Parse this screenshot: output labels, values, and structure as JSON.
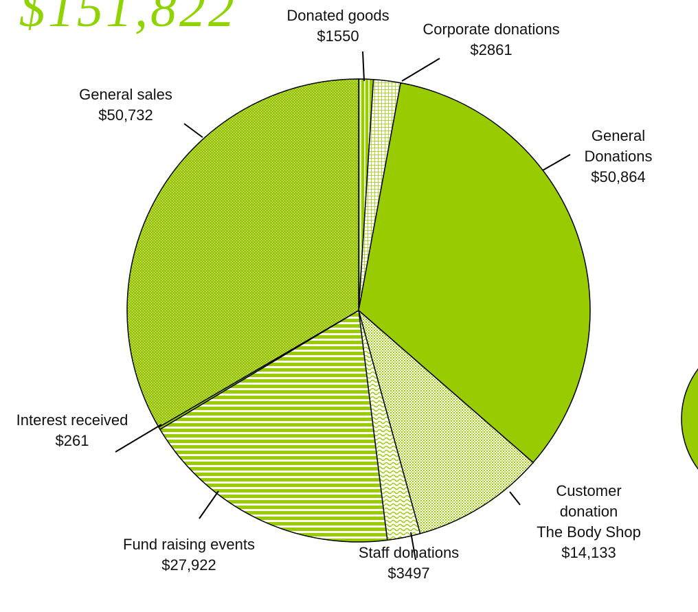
{
  "chart_data": {
    "type": "pie",
    "title": "$151,822",
    "color": "#99cc00",
    "categories": [
      "Donated goods",
      "Corporate donations",
      "General Donations",
      "Customer donation\nThe Body Shop",
      "Staff donations",
      "Fund raising events",
      "Interest received",
      "General sales"
    ],
    "values": [
      1550,
      2861,
      50864,
      14133,
      3497,
      27922,
      261,
      50732
    ],
    "value_labels": [
      "$1550",
      "$2861",
      "$50,864",
      "$14,133",
      "$3497",
      "$27,922",
      "$261",
      "$50,732"
    ]
  }
}
